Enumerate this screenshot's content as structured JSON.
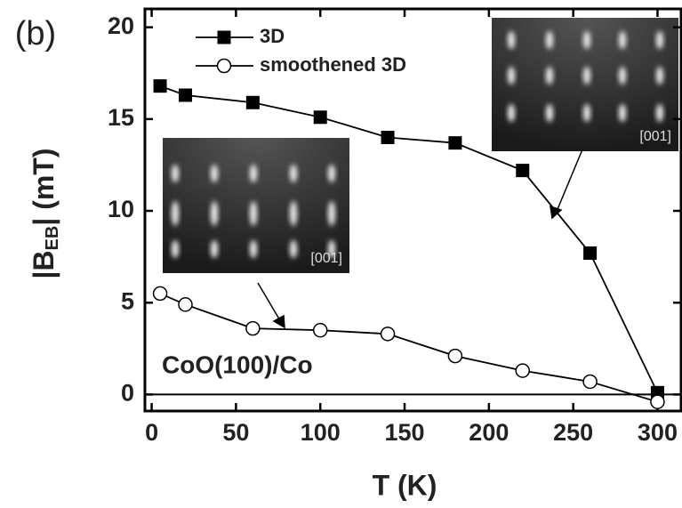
{
  "chart_data": {
    "type": "line",
    "panel_label": "(b)",
    "xlabel": "T (K)",
    "ylabel_parts": [
      "|B",
      "EB",
      "| (mT)"
    ],
    "annotation": "CoO(100)/Co",
    "inset_labels": [
      "[001]",
      "[001]"
    ],
    "x": [
      5,
      20,
      60,
      100,
      140,
      180,
      220,
      260,
      300
    ],
    "series": [
      {
        "name": "3D",
        "color": "#000000",
        "marker": "square",
        "values": [
          16.8,
          16.3,
          15.9,
          15.1,
          14.0,
          13.7,
          12.2,
          7.7,
          0.1
        ]
      },
      {
        "name": "smoothened 3D",
        "color": "#000000",
        "marker": "circle",
        "values": [
          5.5,
          4.9,
          3.6,
          3.5,
          3.3,
          2.1,
          1.3,
          0.7,
          -0.4
        ]
      }
    ],
    "xlim": [
      -4,
      314
    ],
    "ylim": [
      -0.9,
      21
    ],
    "xticks": [
      0,
      50,
      100,
      150,
      200,
      250,
      300
    ],
    "yticks": [
      0,
      5,
      10,
      15,
      20
    ],
    "zero_line": true,
    "legend": "upper-left"
  }
}
